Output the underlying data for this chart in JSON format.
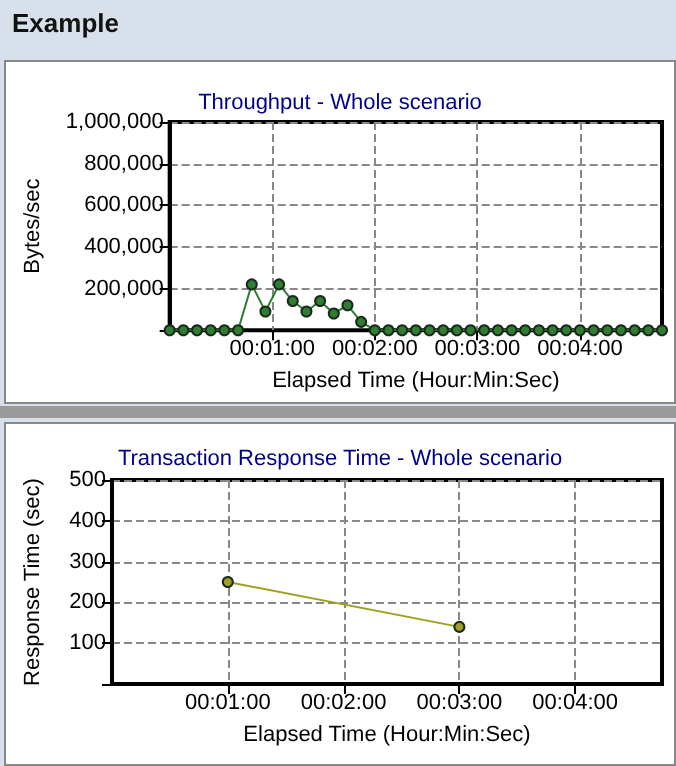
{
  "chart_data": [
    {
      "type": "line",
      "title": "Throughput - Whole scenario",
      "annotations": [
        "Example"
      ],
      "xlabel": "Elapsed Time (Hour:Min:Sec)",
      "ylabel": "Bytes/sec",
      "x": [
        0,
        8,
        16,
        24,
        32,
        40,
        48,
        56,
        64,
        72,
        80,
        88,
        96,
        104,
        112,
        120,
        128,
        136,
        144,
        152,
        160,
        168,
        176,
        184,
        192,
        200,
        208,
        216,
        224,
        232,
        240,
        248,
        256,
        264,
        272,
        280,
        288
      ],
      "series": [
        {
          "color": "#2e7d32",
          "values": [
            0,
            0,
            0,
            0,
            0,
            0,
            220000,
            90000,
            220000,
            140000,
            90000,
            140000,
            80000,
            120000,
            40000,
            0,
            0,
            0,
            0,
            0,
            0,
            0,
            0,
            0,
            0,
            0,
            0,
            0,
            0,
            0,
            0,
            0,
            0,
            0,
            0,
            0,
            0
          ]
        }
      ],
      "xlim": [
        0,
        288
      ],
      "xticks": [
        {
          "value": 60,
          "label": "00:01:00"
        },
        {
          "value": 120,
          "label": "00:02:00"
        },
        {
          "value": 180,
          "label": "00:03:00"
        },
        {
          "value": 240,
          "label": "00:04:00"
        }
      ],
      "ylim": [
        0,
        1000000
      ],
      "yticks": [
        {
          "value": 0,
          "label": null
        },
        {
          "value": 200000,
          "label": "200,000"
        },
        {
          "value": 400000,
          "label": "400,000"
        },
        {
          "value": 600000,
          "label": "600,000"
        },
        {
          "value": 800000,
          "label": "800,000"
        },
        {
          "value": 1000000,
          "label": "1,000,000"
        }
      ],
      "grid": true,
      "marker": "circle",
      "line_style": "solid"
    },
    {
      "type": "line",
      "title": "Transaction Response Time - Whole scenario",
      "xlabel": "Elapsed Time (Hour:Min:Sec)",
      "ylabel": "Response Time (sec)",
      "x": [
        60,
        180
      ],
      "series": [
        {
          "color": "#a0a020",
          "values": [
            250,
            140
          ]
        }
      ],
      "xlim": [
        0,
        285
      ],
      "xticks": [
        {
          "value": 60,
          "label": "00:01:00"
        },
        {
          "value": 120,
          "label": "00:02:00"
        },
        {
          "value": 180,
          "label": "00:03:00"
        },
        {
          "value": 240,
          "label": "00:04:00"
        }
      ],
      "ylim": [
        0,
        500
      ],
      "yticks": [
        {
          "value": 0,
          "label": null
        },
        100,
        200,
        300,
        400,
        500
      ],
      "grid": true,
      "marker": "circle",
      "line_style": "solid"
    }
  ]
}
